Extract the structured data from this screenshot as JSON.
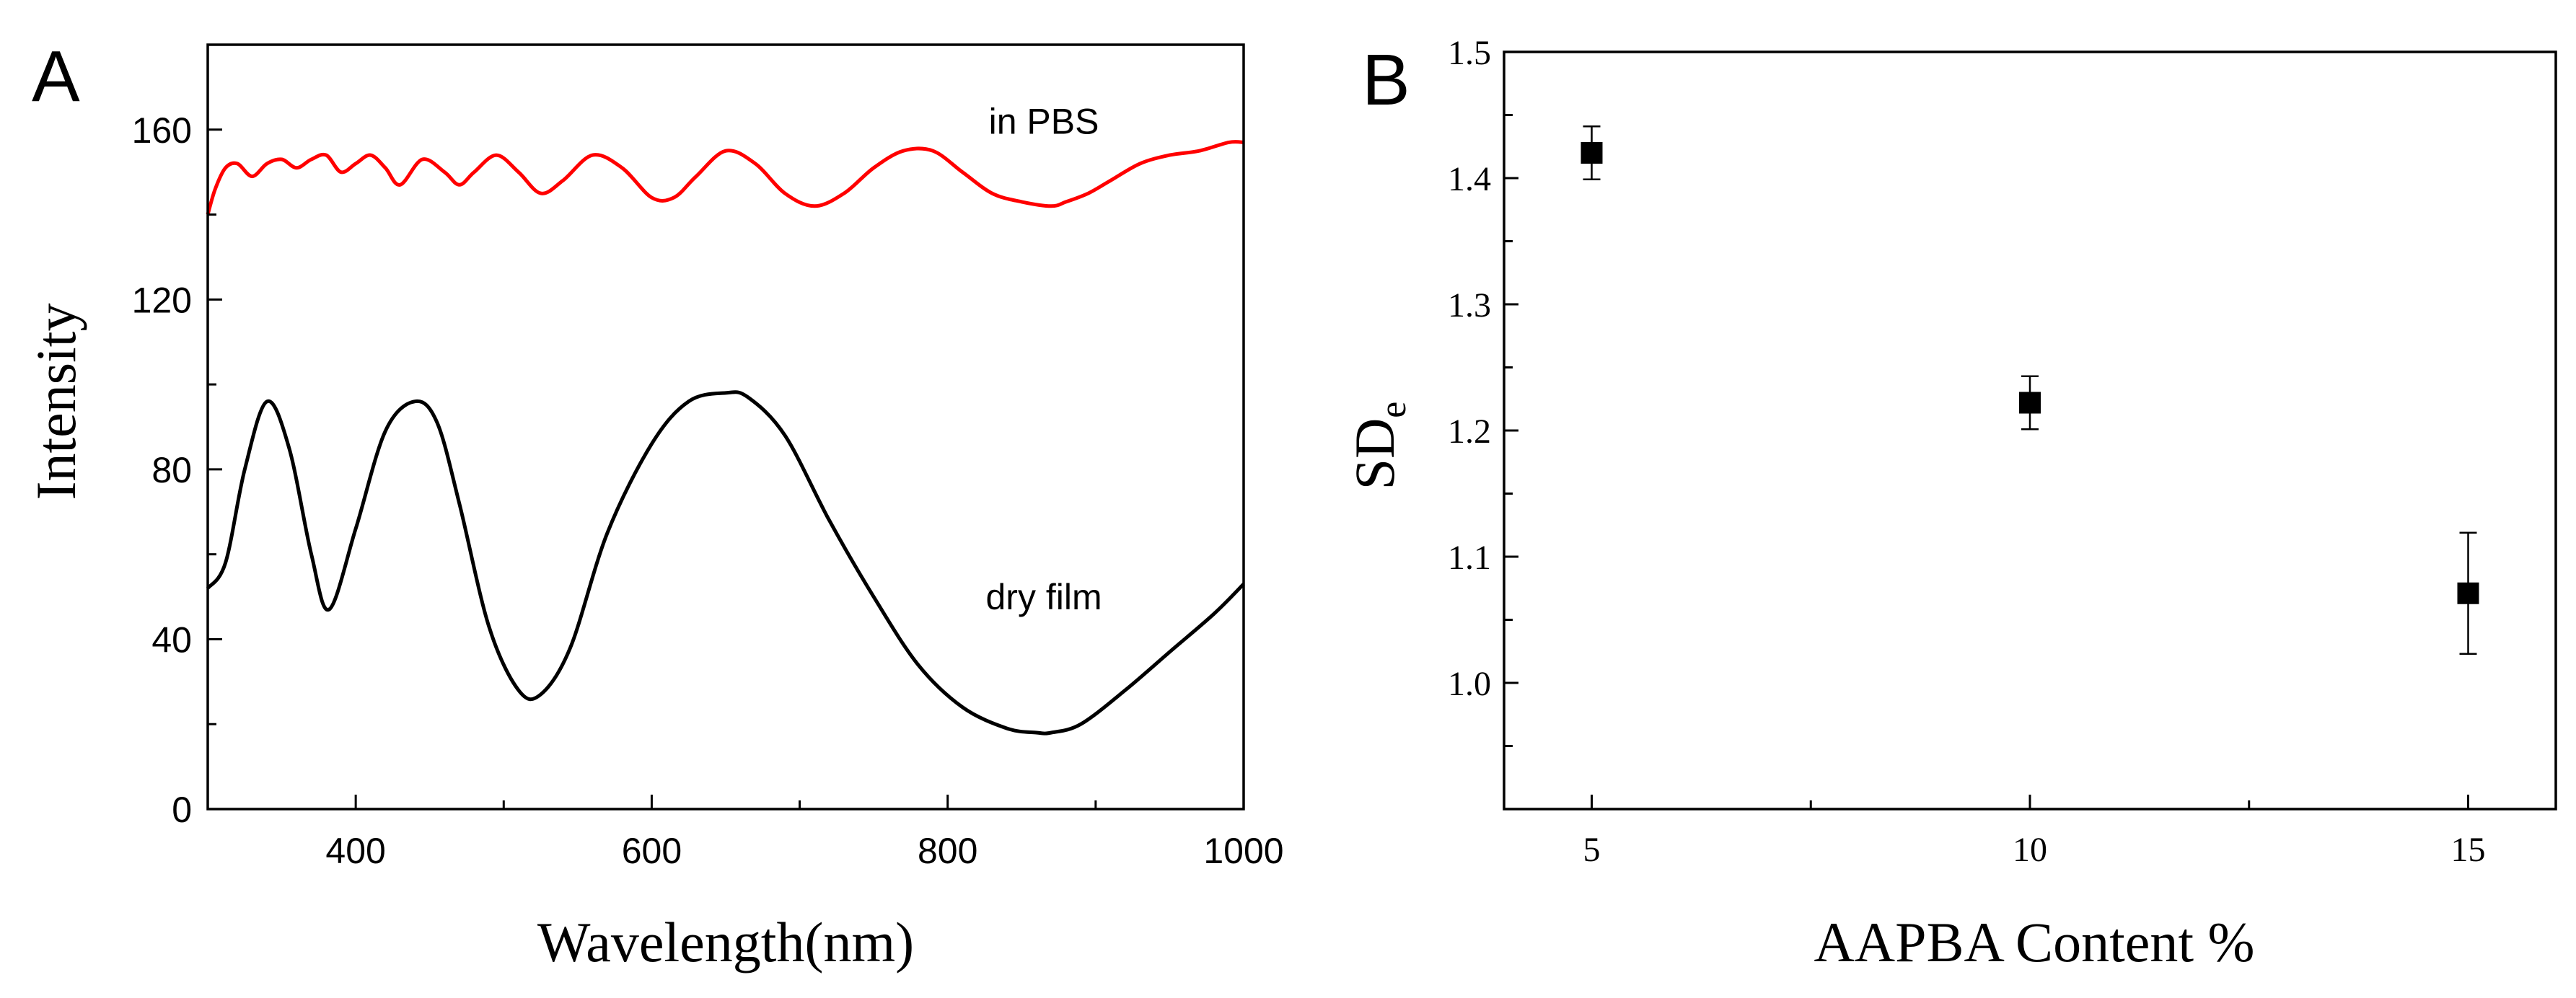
{
  "chart_data": [
    {
      "type": "line",
      "panel_label": "A",
      "xlabel": "Wavelength(nm)",
      "ylabel": "Intensity",
      "xlim": [
        300,
        1000
      ],
      "ylim": [
        0,
        180
      ],
      "xticks": [
        400,
        600,
        800,
        1000
      ],
      "xtick_labels": [
        "400",
        "600",
        "800",
        "1000"
      ],
      "yticks": [
        0,
        40,
        80,
        120,
        160
      ],
      "ytick_labels": [
        "0",
        "40",
        "80",
        "120",
        "160"
      ],
      "annotations": [
        {
          "text": "in PBS",
          "x": 865,
          "y": 159
        },
        {
          "text": "dry film",
          "x": 865,
          "y": 47
        }
      ],
      "series": [
        {
          "name": "in PBS",
          "color": "#ff0000",
          "x": [
            300,
            305,
            312,
            320,
            330,
            340,
            350,
            360,
            370,
            380,
            390,
            400,
            410,
            420,
            430,
            445,
            460,
            470,
            480,
            495,
            510,
            525,
            540,
            560,
            580,
            600,
            615,
            630,
            650,
            670,
            690,
            710,
            730,
            750,
            770,
            790,
            810,
            830,
            850,
            870,
            880,
            895,
            910,
            930,
            950,
            970,
            990,
            1000
          ],
          "y": [
            140,
            146,
            151,
            152,
            149,
            152,
            153,
            151,
            153,
            154,
            150,
            152,
            154,
            151,
            147,
            153,
            150,
            147,
            150,
            154,
            150,
            145,
            148,
            154,
            151,
            144,
            144,
            149,
            155,
            152,
            145,
            142,
            145,
            151,
            155,
            155,
            150,
            145,
            143,
            142,
            143,
            145,
            148,
            152,
            154,
            155,
            157,
            157
          ]
        },
        {
          "name": "dry film",
          "color": "#000000",
          "x": [
            300,
            312,
            325,
            340,
            355,
            370,
            382,
            400,
            420,
            440,
            455,
            470,
            490,
            510,
            525,
            545,
            570,
            600,
            625,
            650,
            665,
            690,
            720,
            750,
            780,
            810,
            840,
            860,
            870,
            890,
            920,
            950,
            980,
            1000
          ],
          "y": [
            52,
            58,
            80,
            96,
            85,
            60,
            47,
            66,
            89,
            96,
            91,
            72,
            43,
            28,
            27,
            38,
            65,
            86,
            96,
            98,
            97,
            88,
            68,
            50,
            34,
            24,
            19,
            18,
            18,
            20,
            28,
            37,
            46,
            53
          ]
        }
      ]
    },
    {
      "type": "scatter",
      "panel_label": "B",
      "xlabel": "AAPBA Content %",
      "ylabel": "SD",
      "ylabel_subscript": "e",
      "xlim": [
        4,
        16
      ],
      "ylim": [
        0.9,
        1.5
      ],
      "xticks": [
        5,
        10,
        15
      ],
      "xtick_labels": [
        "5",
        "10",
        "15"
      ],
      "yticks": [
        1.0,
        1.1,
        1.2,
        1.3,
        1.4,
        1.5
      ],
      "ytick_labels": [
        "1.0",
        "1.1",
        "1.2",
        "1.3",
        "1.4",
        "1.5"
      ],
      "series": [
        {
          "name": "SDe",
          "color": "#000000",
          "x": [
            5,
            10,
            15
          ],
          "y": [
            1.42,
            1.222,
            1.071
          ],
          "yerr": [
            0.021,
            0.021,
            0.048
          ]
        }
      ]
    }
  ]
}
